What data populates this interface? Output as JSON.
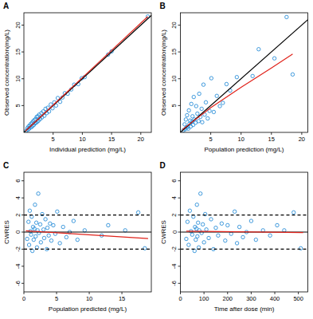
{
  "chart_data": [
    {
      "type": "scatter",
      "title": "A",
      "x_label": "Individual prediction (mg/L)",
      "y_label": "Observed concentration(mg/L)",
      "xlim": [
        0,
        21.8
      ],
      "ylim": [
        0,
        22.3
      ],
      "xticks": [
        5,
        10,
        15,
        20
      ],
      "yticks": [
        5,
        10,
        15,
        20
      ],
      "grid": false,
      "series": [
        {
          "type": "scatter",
          "marker": "open-circle",
          "color": "#2b8fd8",
          "x": [
            0.4,
            0.6,
            0.7,
            0.8,
            0.9,
            1.0,
            1.1,
            1.2,
            1.3,
            1.4,
            1.5,
            1.6,
            1.7,
            1.8,
            1.9,
            2.0,
            2.1,
            2.2,
            2.3,
            2.4,
            2.5,
            2.6,
            2.8,
            3.0,
            3.1,
            3.3,
            3.5,
            3.7,
            3.9,
            4.1,
            4.3,
            4.6,
            4.9,
            5.2,
            5.5,
            5.8,
            6.2,
            6.6,
            7.0,
            7.5,
            8.1,
            8.6,
            9.3,
            9.9,
            10.4,
            14.4,
            15.0,
            21.2
          ],
          "values": [
            0.3,
            0.8,
            0.5,
            1.1,
            0.7,
            1.3,
            0.9,
            1.6,
            1.0,
            1.8,
            1.2,
            2.1,
            1.4,
            2.3,
            1.7,
            2.5,
            1.8,
            2.9,
            2.0,
            3.0,
            2.2,
            3.3,
            2.5,
            3.6,
            2.8,
            3.9,
            3.1,
            4.4,
            3.6,
            4.6,
            3.9,
            5.2,
            4.5,
            5.6,
            5.0,
            6.4,
            5.7,
            6.5,
            7.3,
            7.2,
            8.0,
            8.9,
            9.0,
            10.1,
            10.3,
            14.5,
            15.1,
            21.6
          ]
        },
        {
          "type": "line",
          "color": "#000000",
          "x": [
            0,
            22.3
          ],
          "values": [
            0,
            22.3
          ]
        },
        {
          "type": "line",
          "color": "#e0231b",
          "x": [
            0.3,
            5,
            10,
            15,
            21.2
          ],
          "values": [
            0.3,
            5.1,
            10.2,
            15.3,
            21.6
          ]
        }
      ]
    },
    {
      "type": "scatter",
      "title": "B",
      "x_label": "Population prediction (mg/L)",
      "y_label": "Observed concentration(mg/L)",
      "xlim": [
        0,
        21
      ],
      "ylim": [
        0,
        22.3
      ],
      "xticks": [
        5,
        10,
        15,
        20
      ],
      "yticks": [
        5,
        10,
        15,
        20
      ],
      "grid": false,
      "series": [
        {
          "type": "scatter",
          "marker": "open-circle",
          "color": "#2b8fd8",
          "x": [
            0.5,
            0.7,
            0.8,
            0.9,
            1.0,
            1.1,
            1.2,
            1.3,
            1.4,
            1.5,
            1.6,
            1.7,
            1.8,
            1.9,
            2.0,
            2.1,
            2.2,
            2.3,
            2.5,
            2.6,
            2.8,
            3.0,
            3.1,
            3.3,
            3.5,
            3.6,
            3.8,
            4.0,
            4.2,
            4.5,
            4.8,
            5.1,
            5.5,
            6.0,
            6.5,
            7.0,
            7.6,
            8.2,
            9.3,
            11.9,
            12.9,
            15.5,
            17.5,
            18.5
          ],
          "values": [
            0.4,
            1.5,
            0.6,
            2.4,
            0.9,
            3.2,
            1.0,
            0.7,
            4.1,
            1.6,
            2.2,
            1.1,
            5.3,
            2.0,
            3.0,
            1.4,
            6.6,
            2.4,
            1.8,
            4.9,
            3.5,
            2.1,
            7.2,
            2.9,
            4.4,
            1.9,
            8.9,
            3.3,
            5.6,
            2.6,
            4.0,
            10.1,
            3.8,
            6.8,
            4.9,
            5.5,
            9.0,
            7.8,
            10.3,
            10.5,
            15.5,
            13.8,
            21.5,
            10.8
          ]
        },
        {
          "type": "line",
          "color": "#000000",
          "x": [
            0,
            22.3
          ],
          "values": [
            0,
            22.3
          ]
        },
        {
          "type": "line",
          "color": "#e0231b",
          "x": [
            0.3,
            5,
            10,
            15,
            18.5
          ],
          "values": [
            0.5,
            4.6,
            8.4,
            12,
            14.6
          ]
        }
      ]
    },
    {
      "type": "scatter",
      "title": "C",
      "x_label": "Population predicted (mg/L)",
      "y_label": "CWRES",
      "xlim": [
        0,
        19.5
      ],
      "ylim": [
        -7,
        7
      ],
      "xticks": [
        0,
        5,
        10,
        15
      ],
      "yticks": [
        -6,
        -4,
        -2,
        0,
        2,
        4,
        6
      ],
      "grid": false,
      "series": [
        {
          "type": "scatter",
          "marker": "open-circle",
          "color": "#2b8fd8",
          "x": [
            0.5,
            0.7,
            0.8,
            0.9,
            1.0,
            1.1,
            1.2,
            1.3,
            1.4,
            1.5,
            1.6,
            1.7,
            1.8,
            1.9,
            2.0,
            2.1,
            2.2,
            2.3,
            2.5,
            2.6,
            2.8,
            3.0,
            3.1,
            3.3,
            3.5,
            3.6,
            3.8,
            4.0,
            4.2,
            4.5,
            4.8,
            5.1,
            5.5,
            6.0,
            6.5,
            7.0,
            7.6,
            8.2,
            9.3,
            11.9,
            12.9,
            15.5,
            17.5,
            18.5
          ],
          "values": [
            -0.8,
            1.2,
            -1.5,
            2.5,
            0.1,
            -0.3,
            1.8,
            -2.2,
            0.6,
            -0.9,
            0.4,
            3.2,
            -0.5,
            1.1,
            -1.8,
            0.2,
            4.5,
            -0.1,
            0.9,
            -1.2,
            2.1,
            0.3,
            -0.7,
            1.5,
            -2.0,
            0.5,
            -0.4,
            1.0,
            -1.0,
            0.8,
            -0.2,
            2.4,
            -1.3,
            0.6,
            -0.6,
            0.0,
            1.3,
            -0.9,
            0.2,
            -0.4,
            0.8,
            0.2,
            2.3,
            -1.9
          ]
        },
        {
          "type": "line",
          "color": "#000000",
          "x": [
            0,
            19.5
          ],
          "values": [
            0,
            0
          ]
        },
        {
          "type": "line",
          "color": "#000000",
          "line_style": "dashed",
          "x": [
            0,
            19.5
          ],
          "values": [
            2,
            2
          ]
        },
        {
          "type": "line",
          "color": "#000000",
          "line_style": "dashed",
          "x": [
            0,
            19.5
          ],
          "values": [
            -2,
            -2
          ]
        },
        {
          "type": "line",
          "color": "#e0231b",
          "x": [
            0.3,
            19
          ],
          "values": [
            0.15,
            -0.75
          ]
        }
      ]
    },
    {
      "type": "scatter",
      "title": "D",
      "x_label": "Time after dose (min)",
      "y_label": "CWRES",
      "xlim": [
        0,
        540
      ],
      "ylim": [
        -7,
        7
      ],
      "xticks": [
        0,
        100,
        200,
        300,
        400,
        500
      ],
      "yticks": [
        -6,
        -4,
        -2,
        0,
        2,
        4,
        6
      ],
      "grid": false,
      "series": [
        {
          "type": "scatter",
          "marker": "open-circle",
          "color": "#2b8fd8",
          "x": [
            25,
            30,
            35,
            40,
            45,
            50,
            55,
            60,
            62,
            65,
            68,
            70,
            72,
            75,
            78,
            80,
            85,
            90,
            95,
            100,
            105,
            110,
            120,
            130,
            140,
            150,
            160,
            175,
            190,
            200,
            215,
            230,
            240,
            250,
            265,
            280,
            300,
            320,
            350,
            380,
            410,
            440,
            480,
            510
          ],
          "values": [
            -0.8,
            1.2,
            -1.5,
            2.5,
            0.1,
            -0.3,
            1.8,
            -2.2,
            0.6,
            -0.9,
            0.4,
            3.2,
            -0.5,
            1.1,
            -1.8,
            0.2,
            4.5,
            -0.1,
            0.9,
            -1.2,
            2.1,
            0.3,
            -0.7,
            1.5,
            -2.0,
            0.5,
            -0.4,
            1.0,
            -1.0,
            0.8,
            -0.2,
            2.4,
            -1.3,
            0.6,
            -0.6,
            0.0,
            1.3,
            -0.9,
            0.2,
            -0.4,
            0.8,
            0.2,
            2.3,
            -1.9
          ]
        },
        {
          "type": "line",
          "color": "#000000",
          "x": [
            0,
            540
          ],
          "values": [
            0,
            0
          ]
        },
        {
          "type": "line",
          "color": "#000000",
          "line_style": "dashed",
          "x": [
            0,
            540
          ],
          "values": [
            2,
            2
          ]
        },
        {
          "type": "line",
          "color": "#000000",
          "line_style": "dashed",
          "x": [
            0,
            540
          ],
          "values": [
            -2,
            -2
          ]
        },
        {
          "type": "line",
          "color": "#e0231b",
          "x": [
            25,
            520
          ],
          "values": [
            0.1,
            -0.05
          ]
        }
      ]
    }
  ]
}
